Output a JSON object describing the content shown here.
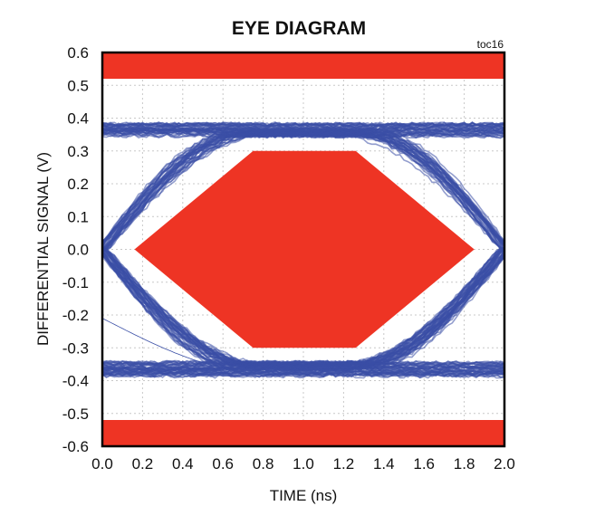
{
  "chart_data": {
    "type": "line",
    "title": "EYE DIAGRAM",
    "note": "toc16",
    "xlabel": "TIME (ns)",
    "ylabel": "DIFFERENTIAL SIGNAL (V)",
    "xlim": [
      0,
      2.0
    ],
    "ylim": [
      -0.6,
      0.6
    ],
    "xticks": [
      "0.0",
      "0.2",
      "0.4",
      "0.6",
      "0.8",
      "1.0",
      "1.2",
      "1.4",
      "1.6",
      "1.8",
      "2.0"
    ],
    "yticks": [
      "0.6",
      "0.5",
      "0.4",
      "0.3",
      "0.2",
      "0.1",
      "0.0",
      "-0.1",
      "-0.2",
      "-0.3",
      "-0.4",
      "-0.5",
      "-0.6"
    ],
    "grid": true,
    "eye": {
      "high_level": 0.39,
      "low_level": -0.39,
      "crossing_times": [
        0.0,
        2.0
      ],
      "crossing_level": 0.0,
      "color": "#3a4fa6"
    },
    "mask": {
      "color": "#ee3424",
      "hexagon": [
        [
          0.16,
          0
        ],
        [
          0.75,
          0.3
        ],
        [
          1.26,
          0.3
        ],
        [
          1.85,
          0
        ],
        [
          1.26,
          -0.3
        ],
        [
          0.75,
          -0.3
        ]
      ],
      "top_band": [
        0.52,
        0.6
      ],
      "bottom_band": [
        -0.6,
        -0.52
      ]
    }
  }
}
